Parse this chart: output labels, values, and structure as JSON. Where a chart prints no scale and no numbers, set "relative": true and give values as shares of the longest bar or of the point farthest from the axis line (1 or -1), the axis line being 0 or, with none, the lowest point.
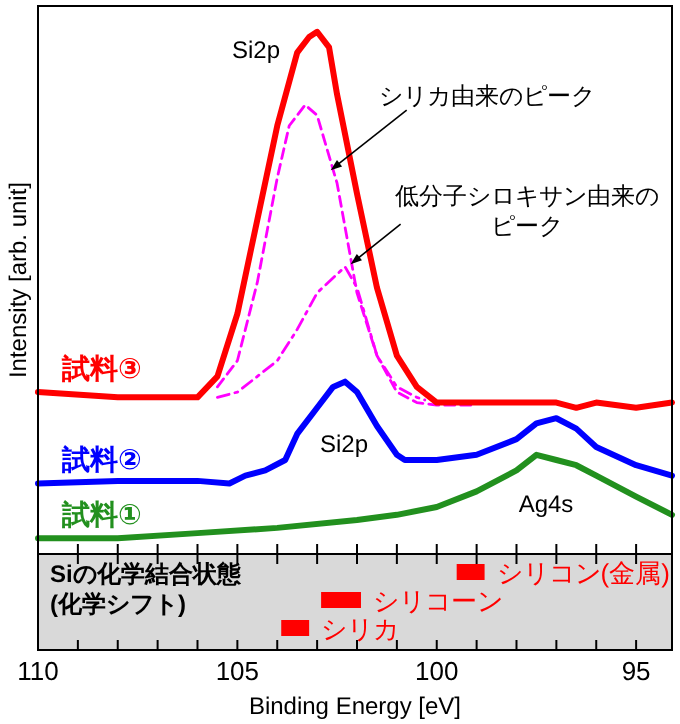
{
  "chart_data": [
    {
      "type": "line",
      "relative": true,
      "ylabel": "Intensity [arb. unit]",
      "xlim": [
        110,
        94.1
      ],
      "tick_labels": false,
      "xticks": [
        110,
        {
          "value": 109,
          "label": null
        },
        {
          "value": 108,
          "label": null
        },
        {
          "value": 107,
          "label": null
        },
        {
          "value": 106,
          "label": null
        },
        105,
        {
          "value": 104,
          "label": null
        },
        {
          "value": 103,
          "label": null
        },
        {
          "value": 102,
          "label": null
        },
        {
          "value": 101,
          "label": null
        },
        100,
        {
          "value": 99,
          "label": null
        },
        {
          "value": 98,
          "label": null
        },
        {
          "value": 97,
          "label": null
        },
        {
          "value": 96,
          "label": null
        },
        95
      ],
      "series": [
        {
          "name": "試料③",
          "color": "#ff0000",
          "x": [
            110,
            108,
            106,
            105.5,
            105,
            104.5,
            104,
            103.5,
            103.2,
            103,
            102.7,
            102.5,
            102,
            101.5,
            101,
            100.5,
            100,
            99,
            98,
            97,
            96.5,
            96,
            95,
            94.1
          ],
          "values": [
            0.31,
            0.3,
            0.3,
            0.34,
            0.46,
            0.64,
            0.82,
            0.96,
            0.99,
            1.0,
            0.97,
            0.88,
            0.69,
            0.51,
            0.38,
            0.32,
            0.29,
            0.29,
            0.29,
            0.29,
            0.28,
            0.29,
            0.28,
            0.29
          ]
        },
        {
          "name": "試料②",
          "color": "#0000ff",
          "x": [
            110,
            108,
            106,
            105.2,
            104.8,
            104.3,
            103.8,
            103.5,
            103,
            102.6,
            102.3,
            102,
            101.5,
            101,
            100.8,
            100,
            99,
            98,
            97.5,
            97,
            96.5,
            96,
            95,
            94.1
          ],
          "values": [
            0.135,
            0.14,
            0.14,
            0.135,
            0.15,
            0.16,
            0.18,
            0.23,
            0.28,
            0.32,
            0.33,
            0.31,
            0.245,
            0.19,
            0.18,
            0.18,
            0.19,
            0.22,
            0.25,
            0.26,
            0.24,
            0.205,
            0.17,
            0.15
          ]
        },
        {
          "name": "試料①",
          "color": "#22901e",
          "x": [
            110,
            108,
            106,
            104,
            102,
            101,
            100,
            99,
            98,
            97.5,
            97,
            96.5,
            96,
            95,
            94.1
          ],
          "values": [
            0.03,
            0.03,
            0.04,
            0.05,
            0.065,
            0.075,
            0.09,
            0.12,
            0.16,
            0.19,
            0.18,
            0.17,
            0.15,
            0.11,
            0.075
          ]
        },
        {
          "color": "#ff00ff",
          "line_style": "dashed",
          "x": [
            105.5,
            105,
            104.5,
            104,
            103.7,
            103.3,
            103,
            102.5,
            102,
            101.5,
            101,
            100.5,
            100,
            99
          ],
          "values": [
            0.32,
            0.37,
            0.52,
            0.72,
            0.82,
            0.86,
            0.84,
            0.71,
            0.5,
            0.38,
            0.31,
            0.29,
            0.285,
            0.285
          ]
        },
        {
          "color": "#ff00ff",
          "line_style": "dashdot",
          "x": [
            105.5,
            105,
            104,
            103.5,
            103,
            102.3,
            102,
            101.5,
            101,
            100.5,
            100.3
          ],
          "values": [
            0.3,
            0.31,
            0.37,
            0.43,
            0.5,
            0.55,
            0.51,
            0.38,
            0.32,
            0.3,
            0.295
          ]
        }
      ],
      "annotations": [
        "Si2p",
        {
          "text": "シリカ由来のピーク",
          "x": 102.66,
          "y": 0.735
        },
        {
          "text": "低分子シロキサン由来のピーク",
          "x": 102.16,
          "y": 0.555
        },
        "Si2p",
        "Ag4s"
      ]
    },
    {
      "type": "bar",
      "orientation": "horizontal",
      "title": "Siの化学結合状態",
      "subtitle": "(化学シフト)",
      "xlabel": "Binding Energy [eV]",
      "xlim": [
        110,
        94.1
      ],
      "categories": [
        "シリコン(金属)",
        "シリコーン",
        "シリカ"
      ],
      "base": [
        98.8,
        101.9,
        103.2
      ],
      "values": [
        0.7,
        1.0,
        0.7
      ],
      "colors": [
        "#ff0000",
        "#ff0000",
        "#ff0000"
      ],
      "xticks": [
        110,
        {
          "value": 109,
          "label": null
        },
        {
          "value": 108,
          "label": null
        },
        {
          "value": 107,
          "label": null
        },
        {
          "value": 106,
          "label": null
        },
        105,
        {
          "value": 104,
          "label": null
        },
        {
          "value": 103,
          "label": null
        },
        {
          "value": 102,
          "label": null
        },
        {
          "value": 101,
          "label": null
        },
        100,
        {
          "value": 99,
          "label": null
        },
        {
          "value": 98,
          "label": null
        },
        {
          "value": 97,
          "label": null
        },
        {
          "value": 96,
          "label": null
        },
        95
      ]
    }
  ]
}
